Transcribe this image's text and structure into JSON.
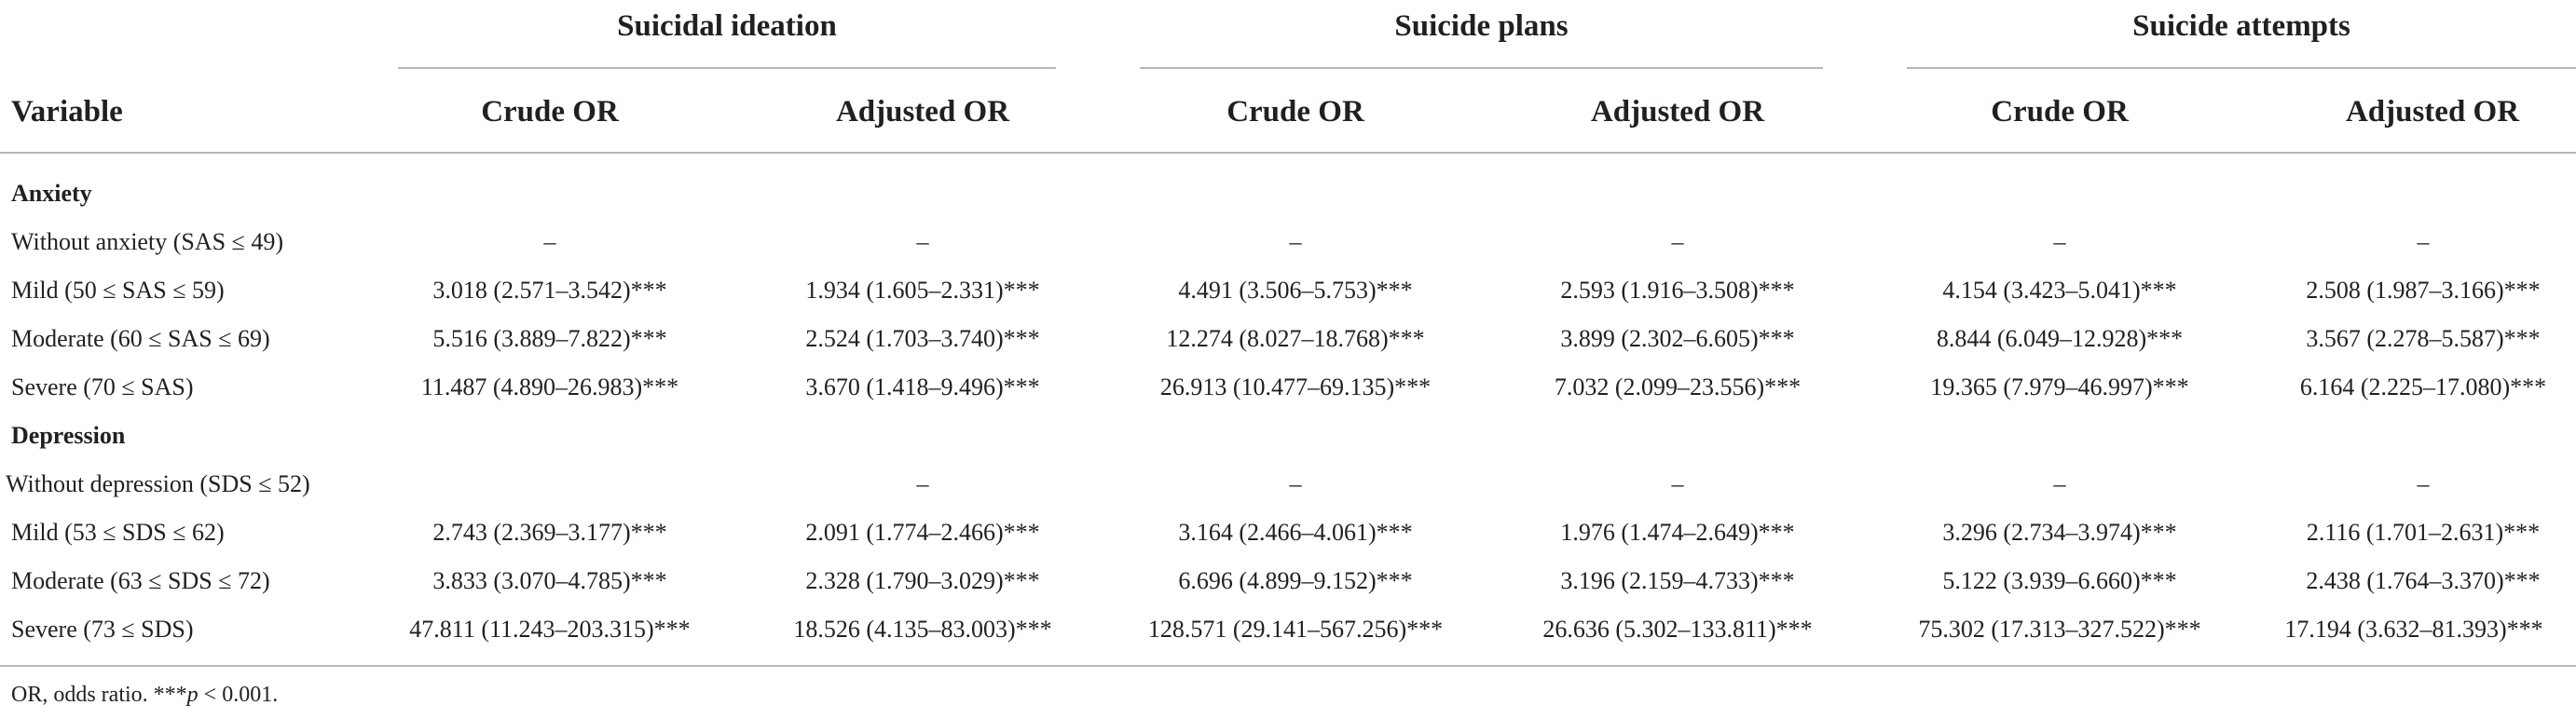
{
  "table": {
    "groups": [
      "Suicidal ideation",
      "Suicide plans",
      "Suicide attempts"
    ],
    "variable_header": "Variable",
    "column_headers": [
      "Crude OR",
      "Adjusted OR",
      "Crude OR",
      "Adjusted OR",
      "Crude OR",
      "Adjusted OR"
    ],
    "rows": [
      {
        "label": "Anxiety",
        "section": true,
        "values": [
          "",
          "",
          "",
          "",
          "",
          ""
        ]
      },
      {
        "label": "Without anxiety (SAS ≤ 49)",
        "section": false,
        "values": [
          "–",
          "–",
          "–",
          "–",
          "–",
          "–"
        ]
      },
      {
        "label": "Mild (50 ≤ SAS ≤ 59)",
        "section": false,
        "values": [
          "3.018 (2.571–3.542)***",
          "1.934 (1.605–2.331)***",
          "4.491 (3.506–5.753)***",
          "2.593 (1.916–3.508)***",
          "4.154 (3.423–5.041)***",
          "2.508 (1.987–3.166)***"
        ]
      },
      {
        "label": "Moderate (60 ≤ SAS ≤ 69)",
        "section": false,
        "values": [
          "5.516 (3.889–7.822)***",
          "2.524 (1.703–3.740)***",
          "12.274 (8.027–18.768)***",
          "3.899 (2.302–6.605)***",
          "8.844 (6.049–12.928)***",
          "3.567 (2.278–5.587)***"
        ]
      },
      {
        "label": "Severe (70 ≤ SAS)",
        "section": false,
        "values": [
          "11.487 (4.890–26.983)***",
          "3.670 (1.418–9.496)***",
          "26.913 (10.477–69.135)***",
          "7.032 (2.099–23.556)***",
          "19.365 (7.979–46.997)***",
          "6.164 (2.225–17.080)***"
        ]
      },
      {
        "label": "Depression",
        "section": true,
        "values": [
          "",
          "",
          "",
          "",
          "",
          ""
        ]
      },
      {
        "label": "Without depression (SDS ≤ 52)",
        "section": false,
        "values": [
          "",
          "–",
          "–",
          "–",
          "–",
          "–"
        ]
      },
      {
        "label": "Mild (53 ≤ SDS ≤ 62)",
        "section": false,
        "values": [
          "2.743 (2.369–3.177)***",
          "2.091 (1.774–2.466)***",
          "3.164 (2.466–4.061)***",
          "1.976 (1.474–2.649)***",
          "3.296 (2.734–3.974)***",
          "2.116 (1.701–2.631)***"
        ]
      },
      {
        "label": "Moderate (63 ≤ SDS ≤ 72)",
        "section": false,
        "values": [
          "3.833 (3.070–4.785)***",
          "2.328 (1.790–3.029)***",
          "6.696 (4.899–9.152)***",
          "3.196 (2.159–4.733)***",
          "5.122 (3.939–6.660)***",
          "2.438 (1.764–3.370)***"
        ]
      },
      {
        "label": "Severe (73 ≤ SDS)",
        "section": false,
        "values": [
          "47.811 (11.243–203.315)***",
          "18.526 (4.135–83.003)***",
          "128.571 (29.141–567.256)***",
          "26.636 (5.302–133.811)***",
          "75.302 (17.313–327.522)***",
          "17.194 (3.632–81.393)***"
        ]
      }
    ],
    "footnote": {
      "lead": "OR, odds ratio. ***",
      "italic": "p",
      "tail": " < 0.001."
    }
  }
}
